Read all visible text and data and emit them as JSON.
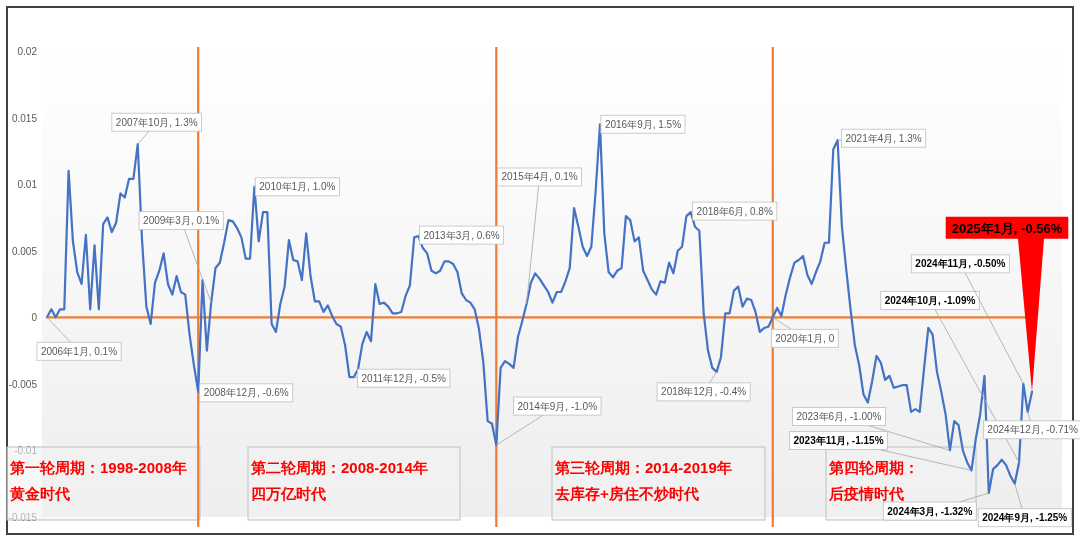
{
  "chart_data": {
    "type": "line",
    "tick_labels": "y",
    "ylim": [
      -0.015,
      0.02
    ],
    "yticks": [
      -0.015,
      -0.01,
      -0.005,
      0,
      0.005,
      0.01,
      0.015,
      0.02
    ],
    "categories": [
      null,
      null,
      null,
      null,
      null,
      null,
      null,
      null,
      null,
      null,
      null,
      null,
      null,
      null,
      null,
      null,
      null,
      null,
      null,
      null,
      null,
      null,
      null,
      null,
      null,
      null,
      null,
      null,
      null,
      null,
      null,
      null,
      null,
      null,
      null,
      null,
      null,
      null,
      null,
      null,
      null,
      null,
      null,
      null,
      null,
      null,
      null,
      null,
      null,
      null,
      null,
      null,
      null,
      null,
      null,
      null,
      null,
      null,
      null,
      null,
      null,
      null,
      null,
      null,
      null,
      null,
      null,
      null,
      null,
      null,
      null,
      null,
      null,
      null,
      null,
      null,
      null,
      null,
      null,
      null,
      null,
      null,
      null,
      null,
      null,
      null,
      null,
      null,
      null,
      null,
      null,
      null,
      null,
      null,
      null,
      null,
      null,
      null,
      null,
      null,
      null,
      null,
      null,
      null,
      null,
      null,
      null,
      null,
      null,
      null,
      null,
      null,
      null,
      null,
      null,
      null,
      null,
      null,
      null,
      null,
      null,
      null,
      null,
      null,
      null,
      null,
      null,
      null,
      null,
      null,
      null,
      null,
      null,
      null,
      null,
      null,
      null,
      null,
      null,
      null,
      null,
      null,
      null,
      null,
      null,
      null,
      null,
      null,
      null,
      null,
      null,
      null,
      null,
      null,
      null,
      null,
      null,
      null,
      null,
      null,
      null,
      null,
      null,
      null,
      null,
      null,
      null,
      null,
      null,
      null,
      null,
      null,
      null,
      null,
      null,
      null,
      null,
      null,
      null,
      null,
      null,
      null,
      null,
      null,
      null,
      null,
      null,
      null,
      null,
      null,
      null,
      null,
      null,
      null,
      null,
      null,
      null,
      null,
      null,
      null,
      null,
      null,
      null,
      null,
      null,
      null,
      null,
      null,
      null,
      null,
      null,
      null,
      null,
      null,
      null,
      null,
      null,
      null,
      null,
      null,
      null,
      null,
      null,
      null,
      null,
      null,
      null,
      null,
      null
    ],
    "series": [
      {
        "color": "#4472c4",
        "values": [
          0,
          0.0006,
          0,
          0.0006,
          0.0006,
          0.011,
          0.0057,
          0.0034,
          0.0025,
          0.0062,
          0.0006,
          0.0054,
          0.0006,
          0.007,
          0.0075,
          0.0064,
          0.0071,
          0.0093,
          0.009,
          0.0104,
          0.0104,
          0.013,
          0.0058,
          0.0008,
          -0.0005,
          0.0026,
          0.0035,
          0.0048,
          0.0025,
          0.0017,
          0.0031,
          0.0019,
          0.0017,
          -0.0013,
          -0.0036,
          -0.0056,
          0.0028,
          -0.0025,
          0.0011,
          0.0037,
          0.0041,
          0.0056,
          0.0073,
          0.0072,
          0.0067,
          0.006,
          0.0044,
          0.0044,
          0.0098,
          0.0057,
          0.0079,
          0.0079,
          -0.0005,
          -0.0011,
          0.001,
          0.0023,
          0.0058,
          0.0043,
          0.0042,
          0.0028,
          0.0063,
          0.0031,
          0.0012,
          0.0012,
          0.0004,
          0.0009,
          0.0001,
          -0.0005,
          -0.0007,
          -0.0021,
          -0.0045,
          -0.0045,
          -0.0039,
          -0.002,
          -0.0011,
          -0.0018,
          0.0025,
          0.001,
          0.0011,
          0.0008,
          0.0003,
          0.0003,
          0.0004,
          0.0016,
          0.0024,
          0.006,
          0.0061,
          0.0052,
          0.0048,
          0.0035,
          0.0033,
          0.0035,
          0.0042,
          0.0042,
          0.004,
          0.0034,
          0.0018,
          0.0013,
          0.0011,
          0.0006,
          -0.0009,
          -0.0034,
          -0.0078,
          -0.008,
          -0.0096,
          -0.0038,
          -0.0033,
          -0.0035,
          -0.0038,
          -0.0015,
          -0.0003,
          0.001,
          0.0026,
          0.0033,
          0.0029,
          0.0024,
          0.0019,
          0.0011,
          0.0019,
          0.0019,
          0.0027,
          0.0037,
          0.0082,
          0.0068,
          0.0053,
          0.0046,
          0.0053,
          0.0095,
          0.0145,
          0.0063,
          0.0034,
          0.003,
          0.0035,
          0.0037,
          0.0076,
          0.0073,
          0.0057,
          0.006,
          0.0035,
          0.0028,
          0.0021,
          0.0017,
          0.0027,
          0.0026,
          0.0041,
          0.0033,
          0.005,
          0.0053,
          0.0076,
          0.0079,
          0.0068,
          0.0065,
          0.0003,
          -0.0025,
          -0.0038,
          -0.0041,
          -0.003,
          0.0003,
          0.0003,
          0.002,
          0.0023,
          0.0008,
          0.0014,
          0.0013,
          0.0004,
          -0.0011,
          -0.0008,
          -0.0007,
          0,
          0.0007,
          0.0001,
          0.0017,
          0.003,
          0.0041,
          0.0043,
          0.0046,
          0.0032,
          0.0025,
          0.0034,
          0.0042,
          0.0056,
          0.0056,
          0.0126,
          0.0133,
          0.0068,
          0.0036,
          0.0006,
          -0.0021,
          -0.0036,
          -0.0058,
          -0.0064,
          -0.0048,
          -0.0029,
          -0.0034,
          -0.0047,
          -0.0044,
          -0.0053,
          -0.0052,
          -0.0051,
          -0.0051,
          -0.0071,
          -0.0069,
          -0.0071,
          -0.0039,
          -0.0008,
          -0.0013,
          -0.0041,
          -0.0056,
          -0.0073,
          -0.01,
          -0.0078,
          -0.0081,
          -0.01,
          -0.0109,
          -0.0115,
          -0.0091,
          -0.0073,
          -0.0044,
          -0.0132,
          -0.0114,
          -0.0111,
          -0.0107,
          -0.0111,
          -0.0119,
          -0.0125,
          -0.0109,
          -0.005,
          -0.0071,
          -0.0056
        ]
      }
    ],
    "ref_lines": [
      {
        "axis": "y",
        "value": 0,
        "color": "#ed7d31"
      }
    ],
    "annotations": [
      "2006年1月, 0.1%",
      "2007年10月, 1.3%",
      "2008年12月, -0.6%",
      "2009年3月, 0.1%",
      "2010年1月, 1.0%",
      "2011年12月, -0.5%",
      "2013年3月, 0.6%",
      "2014年9月, -1.0%",
      "2015年4月, 0.1%",
      "2016年9月, 1.5%",
      "2018年6月, 0.8%",
      "2018年12月, -0.4%",
      "2020年1月, 0",
      "2021年4月, 1.3%",
      "2023年6月, -1.00%",
      "2023年11月, -1.15%",
      "2024年3月, -1.32%",
      "2024年9月, -1.25%",
      "2024年10月, -1.09%",
      "2024年11月, -0.50%",
      "2024年12月, -0.71%",
      "2025年1月, -0.56%",
      "第一轮周期：1998-2008年黄金时代",
      "第二轮周期：2008-2014年四万亿时代",
      "第三轮周期：2014-2019年去库存+房住不炒时代",
      "第四轮周期：后疫情时代"
    ]
  }
}
